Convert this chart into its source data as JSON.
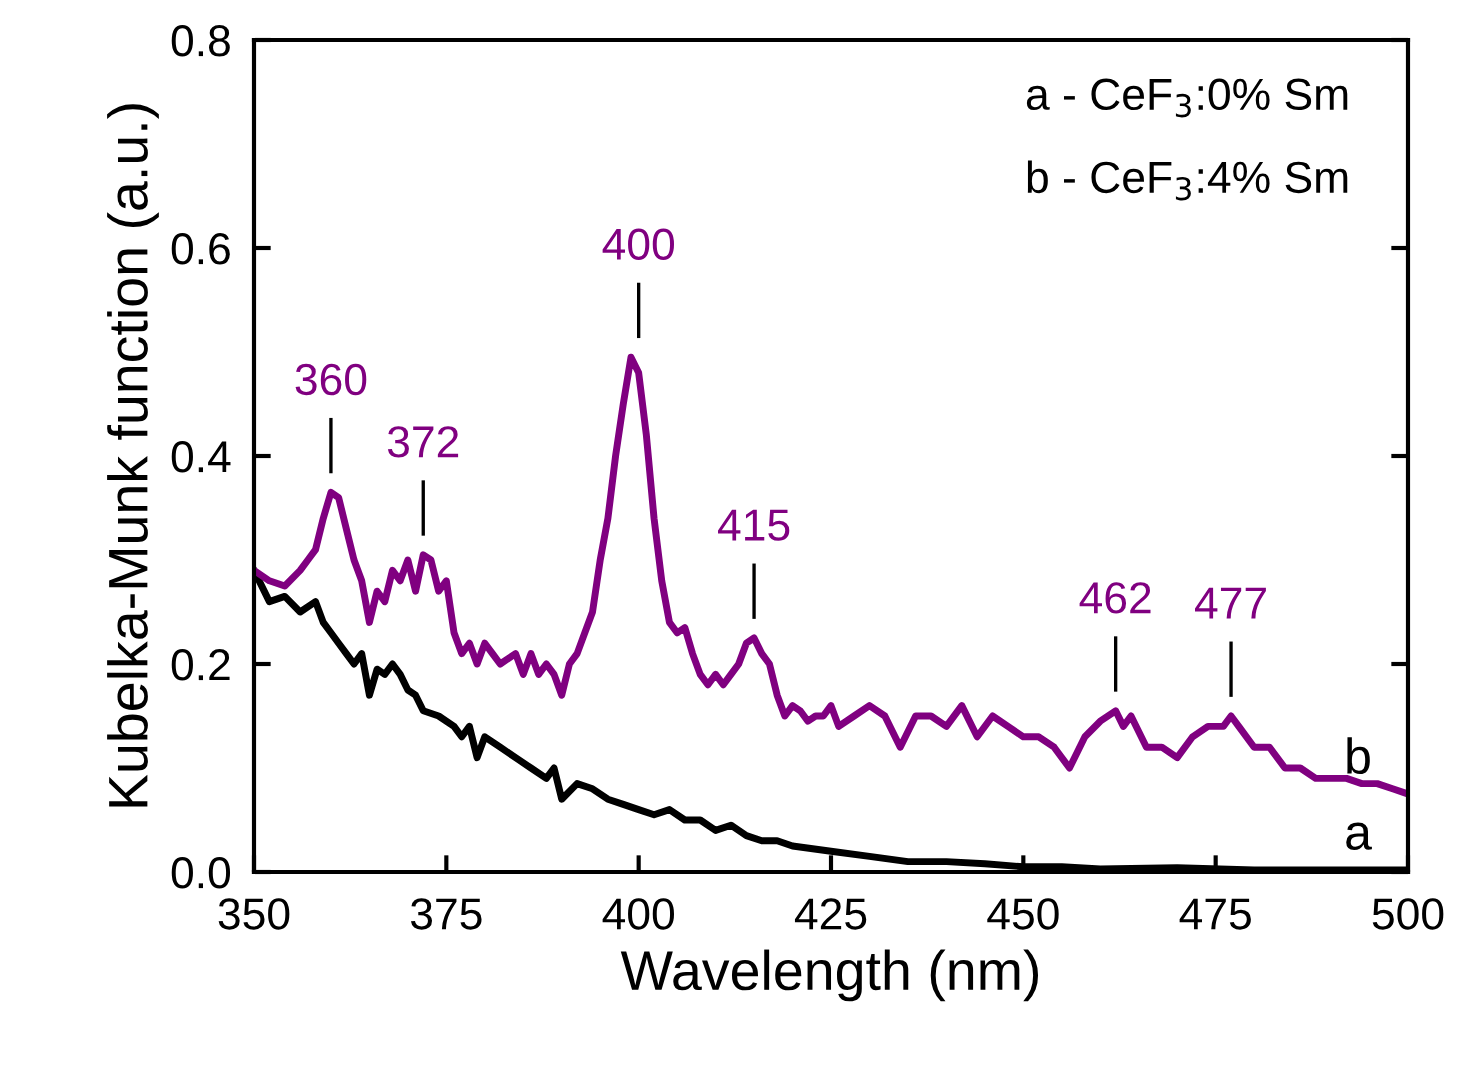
{
  "chart_data": {
    "type": "line",
    "xlabel": "Wavelength (nm)",
    "ylabel": "Kubelka-Munk function (a.u.)",
    "xlim": [
      350,
      500
    ],
    "xticks": [
      350,
      375,
      400,
      425,
      450,
      475,
      500
    ],
    "ylim": [
      0,
      0.8
    ],
    "yticks": [
      {
        "value": 0,
        "label": "0.0"
      },
      0.2,
      0.4,
      0.6,
      0.8
    ],
    "grid": false,
    "legend": false,
    "marker": "none",
    "line_style": "solid",
    "series": [
      {
        "name": "a",
        "color": "#000000",
        "x": [
          350,
          352,
          354,
          356,
          358,
          359,
          360,
          361,
          362,
          363,
          364,
          365,
          366,
          367,
          368,
          369,
          370,
          371,
          372,
          374,
          376,
          377,
          378,
          379,
          380,
          382,
          384,
          386,
          388,
          389,
          390,
          392,
          394,
          396,
          398,
          400,
          402,
          404,
          406,
          408,
          410,
          412,
          414,
          416,
          418,
          420,
          425,
          430,
          435,
          440,
          445,
          450,
          455,
          460,
          470,
          480,
          490,
          500
        ],
        "values": [
          0.29,
          0.26,
          0.265,
          0.25,
          0.26,
          0.24,
          0.23,
          0.22,
          0.21,
          0.2,
          0.21,
          0.17,
          0.195,
          0.19,
          0.2,
          0.19,
          0.175,
          0.17,
          0.155,
          0.15,
          0.14,
          0.13,
          0.14,
          0.11,
          0.13,
          0.12,
          0.11,
          0.1,
          0.09,
          0.1,
          0.07,
          0.085,
          0.08,
          0.07,
          0.065,
          0.06,
          0.055,
          0.06,
          0.05,
          0.05,
          0.04,
          0.045,
          0.035,
          0.03,
          0.03,
          0.025,
          0.02,
          0.015,
          0.01,
          0.01,
          0.008,
          0.005,
          0.005,
          0.003,
          0.004,
          0.002,
          0.002,
          0.002
        ]
      },
      {
        "name": "b",
        "color": "#800080",
        "x": [
          350,
          352,
          354,
          356,
          357,
          358,
          359,
          360,
          361,
          362,
          363,
          364,
          365,
          366,
          367,
          368,
          369,
          370,
          371,
          372,
          373,
          374,
          375,
          376,
          377,
          378,
          379,
          380,
          381,
          382,
          384,
          385,
          386,
          387,
          388,
          389,
          390,
          391,
          392,
          393,
          394,
          395,
          396,
          397,
          398,
          399,
          400,
          401,
          402,
          403,
          404,
          405,
          406,
          407,
          408,
          409,
          410,
          411,
          412,
          413,
          414,
          415,
          416,
          417,
          418,
          419,
          420,
          421,
          422,
          423,
          424,
          425,
          426,
          428,
          430,
          432,
          434,
          436,
          438,
          440,
          442,
          444,
          446,
          448,
          450,
          452,
          454,
          456,
          458,
          460,
          462,
          463,
          464,
          466,
          468,
          470,
          472,
          474,
          476,
          477,
          478,
          480,
          482,
          484,
          486,
          488,
          490,
          492,
          494,
          496,
          498,
          500
        ],
        "values": [
          0.29,
          0.28,
          0.275,
          0.29,
          0.3,
          0.31,
          0.34,
          0.365,
          0.36,
          0.33,
          0.3,
          0.28,
          0.24,
          0.27,
          0.26,
          0.29,
          0.28,
          0.3,
          0.27,
          0.305,
          0.3,
          0.27,
          0.28,
          0.23,
          0.21,
          0.22,
          0.2,
          0.22,
          0.21,
          0.2,
          0.21,
          0.19,
          0.21,
          0.19,
          0.2,
          0.19,
          0.17,
          0.2,
          0.21,
          0.23,
          0.25,
          0.3,
          0.34,
          0.4,
          0.45,
          0.495,
          0.48,
          0.42,
          0.34,
          0.28,
          0.24,
          0.23,
          0.235,
          0.21,
          0.19,
          0.18,
          0.19,
          0.18,
          0.19,
          0.2,
          0.22,
          0.225,
          0.21,
          0.2,
          0.17,
          0.15,
          0.16,
          0.155,
          0.145,
          0.15,
          0.15,
          0.16,
          0.14,
          0.15,
          0.16,
          0.15,
          0.12,
          0.15,
          0.15,
          0.14,
          0.16,
          0.13,
          0.15,
          0.14,
          0.13,
          0.13,
          0.12,
          0.1,
          0.13,
          0.145,
          0.155,
          0.14,
          0.15,
          0.12,
          0.12,
          0.11,
          0.13,
          0.14,
          0.14,
          0.15,
          0.14,
          0.12,
          0.12,
          0.1,
          0.1,
          0.09,
          0.09,
          0.09,
          0.085,
          0.085,
          0.08,
          0.075
        ]
      }
    ],
    "annotations": [
      "a - CeF$_{3}$:0% Sm",
      "b - CeF$_{3}$:4% Sm",
      {
        "text": "360",
        "x": 360,
        "y": 0.365
      },
      {
        "text": "372",
        "x": 372,
        "y": 0.305
      },
      {
        "text": "400",
        "x": 400,
        "y": 0.495
      },
      {
        "text": "415",
        "x": 415,
        "y": 0.225
      },
      {
        "text": "462",
        "x": 462,
        "y": 0.155
      },
      {
        "text": "477",
        "x": 477,
        "y": 0.15
      }
    ]
  }
}
